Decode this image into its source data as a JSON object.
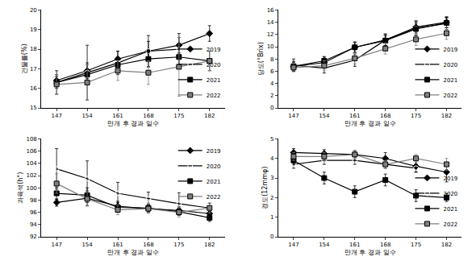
{
  "chart_data": [
    {
      "type": "line",
      "x_label": "만개 후 경과 일수",
      "y_label": "건물률(%)",
      "categories": [
        "147",
        "154",
        "161",
        "168",
        "175",
        "182"
      ],
      "ylim": [
        15,
        20
      ],
      "yticks": [
        15,
        16,
        17,
        18,
        19,
        20
      ],
      "legend": "lower right",
      "series": [
        {
          "name": "2019",
          "color": "#000000",
          "marker": "diamond",
          "line_style": "solid",
          "values": [
            16.4,
            16.9,
            17.5,
            17.9,
            18.2,
            18.8
          ],
          "errors": [
            0.3,
            0.4,
            0.4,
            0.5,
            0.4,
            0.4
          ]
        },
        {
          "name": "2020",
          "color": "#000000",
          "marker": "circle-open",
          "line_style": "solid",
          "values": [
            16.3,
            16.8,
            17.3,
            17.9,
            18.0,
            null
          ],
          "errors": [
            0.6,
            1.4,
            0.6,
            0.8,
            0.8,
            null
          ]
        },
        {
          "name": "2021",
          "color": "#000000",
          "marker": "square",
          "line_style": "solid",
          "values": [
            16.3,
            16.7,
            17.2,
            17.5,
            17.6,
            17.4
          ],
          "errors": [
            0.3,
            0.5,
            0.4,
            0.4,
            0.5,
            0.5
          ]
        },
        {
          "name": "2022",
          "color": "#808080",
          "marker": "square",
          "line_style": "solid",
          "values": [
            16.2,
            16.3,
            16.9,
            16.8,
            17.1,
            17.4
          ],
          "errors": [
            0.5,
            0.9,
            0.5,
            0.6,
            1.5,
            0.5
          ]
        }
      ]
    },
    {
      "type": "line",
      "x_label": "만개 후 경과 일수",
      "y_label": "당도(°Brix)",
      "categories": [
        "147",
        "154",
        "161",
        "168",
        "175",
        "182"
      ],
      "ylim": [
        0,
        16
      ],
      "yticks": [
        0,
        2,
        4,
        6,
        8,
        10,
        12,
        14,
        16
      ],
      "legend": "lower right",
      "series": [
        {
          "name": "2019",
          "color": "#000000",
          "marker": "diamond",
          "line_style": "solid",
          "values": [
            6.8,
            7.4,
            9.9,
            11.1,
            13.2,
            14.0
          ],
          "errors": [
            0.8,
            0.9,
            0.9,
            0.9,
            1.0,
            0.9
          ]
        },
        {
          "name": "2020",
          "color": "#000000",
          "marker": "circle-open",
          "line_style": "solid",
          "values": [
            7.0,
            6.5,
            7.8,
            11.1,
            13.0,
            13.8
          ],
          "errors": [
            1.0,
            0.8,
            1.0,
            1.0,
            1.2,
            1.0
          ]
        },
        {
          "name": "2021",
          "color": "#000000",
          "marker": "square",
          "line_style": "solid",
          "values": [
            6.8,
            7.7,
            9.9,
            11.0,
            12.9,
            13.9
          ],
          "errors": [
            0.6,
            0.7,
            0.8,
            0.8,
            1.0,
            0.8
          ]
        },
        {
          "name": "2022",
          "color": "#808080",
          "marker": "square",
          "line_style": "solid",
          "values": [
            6.6,
            6.9,
            8.1,
            9.7,
            11.2,
            12.2
          ],
          "errors": [
            0.7,
            0.8,
            0.9,
            0.9,
            1.0,
            1.0
          ]
        }
      ]
    },
    {
      "type": "line",
      "x_label": "만개 후 경과 일수",
      "y_label": "과육색(h°)",
      "categories": [
        "147",
        "154",
        "161",
        "168",
        "175",
        "182"
      ],
      "ylim": [
        92,
        108
      ],
      "yticks": [
        92,
        94,
        96,
        98,
        100,
        102,
        104,
        106,
        108
      ],
      "legend": "upper right",
      "series": [
        {
          "name": "2019",
          "color": "#000000",
          "marker": "diamond",
          "line_style": "solid",
          "values": [
            97.6,
            98.3,
            97.0,
            96.6,
            96.3,
            95.8
          ],
          "errors": [
            0.6,
            1.2,
            0.8,
            0.6,
            0.6,
            0.6
          ]
        },
        {
          "name": "2020",
          "color": "#000000",
          "marker": "circle-open",
          "line_style": "solid",
          "values": [
            103.1,
            101.5,
            99.1,
            98.2,
            97.4,
            96.7
          ],
          "errors": [
            3.3,
            2.9,
            1.8,
            1.1,
            1.8,
            0.8
          ]
        },
        {
          "name": "2021",
          "color": "#000000",
          "marker": "square",
          "line_style": "solid",
          "values": [
            99.1,
            98.8,
            96.8,
            96.7,
            96.1,
            95.1
          ],
          "errors": [
            1.0,
            1.2,
            0.8,
            0.6,
            0.6,
            0.6
          ]
        },
        {
          "name": "2022",
          "color": "#808080",
          "marker": "square",
          "line_style": "solid",
          "values": [
            100.7,
            98.2,
            96.4,
            96.6,
            96.0,
            96.7
          ],
          "errors": [
            1.6,
            1.2,
            0.8,
            0.8,
            0.8,
            0.8
          ]
        }
      ]
    },
    {
      "type": "line",
      "x_label": "만개 후 경과 일수",
      "y_label": "경도(12mmφ)",
      "categories": [
        "147",
        "154",
        "161",
        "168",
        "175",
        "182"
      ],
      "ylim": [
        0,
        5
      ],
      "yticks": [
        0,
        1,
        2,
        3,
        4,
        5
      ],
      "legend": "lower right",
      "series": [
        {
          "name": "2019",
          "color": "#000000",
          "marker": "diamond",
          "line_style": "solid",
          "values": [
            4.3,
            4.25,
            4.2,
            4.0,
            3.6,
            3.3
          ],
          "errors": [
            0.2,
            0.2,
            0.2,
            0.3,
            0.3,
            0.5
          ]
        },
        {
          "name": "2020",
          "color": "#000000",
          "marker": "circle-open",
          "line_style": "solid",
          "values": [
            3.7,
            3.9,
            3.9,
            3.7,
            3.5,
            null
          ],
          "errors": [
            0.2,
            0.2,
            0.2,
            0.2,
            0.2,
            null
          ]
        },
        {
          "name": "2021",
          "color": "#000000",
          "marker": "square",
          "line_style": "solid",
          "values": [
            3.9,
            3.0,
            2.3,
            2.9,
            2.1,
            2.0
          ],
          "errors": [
            0.2,
            0.3,
            0.3,
            0.3,
            0.3,
            0.2
          ]
        },
        {
          "name": "2022",
          "color": "#808080",
          "marker": "square",
          "line_style": "solid",
          "values": [
            4.1,
            4.1,
            4.2,
            3.7,
            4.0,
            3.7
          ],
          "errors": [
            0.2,
            0.2,
            0.2,
            0.2,
            0.2,
            0.3
          ]
        }
      ]
    }
  ]
}
